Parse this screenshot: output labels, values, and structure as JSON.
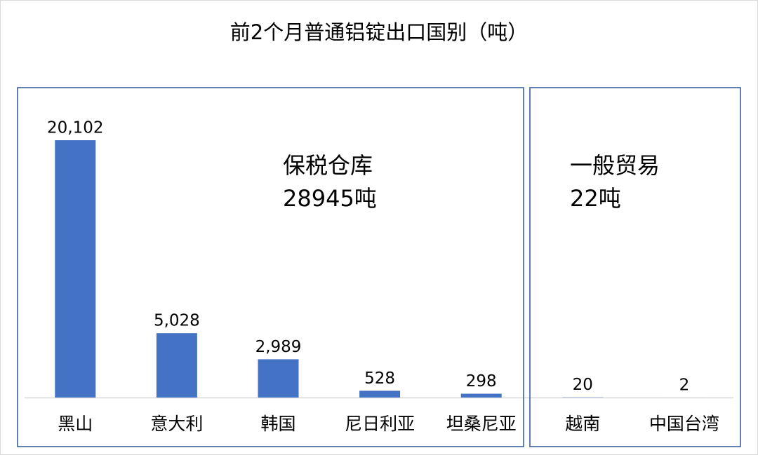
{
  "chart_data": {
    "type": "bar",
    "title": "前2个月普通铝锭出口国别（吨）",
    "categories": [
      "黑山",
      "意大利",
      "韩国",
      "尼日利亚",
      "坦桑尼亚",
      "越南",
      "中国台湾"
    ],
    "values": [
      20102,
      5028,
      2989,
      528,
      298,
      20,
      2
    ],
    "value_labels": [
      "20,102",
      "5,028",
      "2,989",
      "528",
      "298",
      "20",
      "2"
    ],
    "color": "#4472c4",
    "annotations": [
      {
        "lines": [
          "保税仓库",
          "28945吨"
        ]
      },
      {
        "lines": [
          "一般贸易",
          "22吨"
        ]
      }
    ]
  }
}
